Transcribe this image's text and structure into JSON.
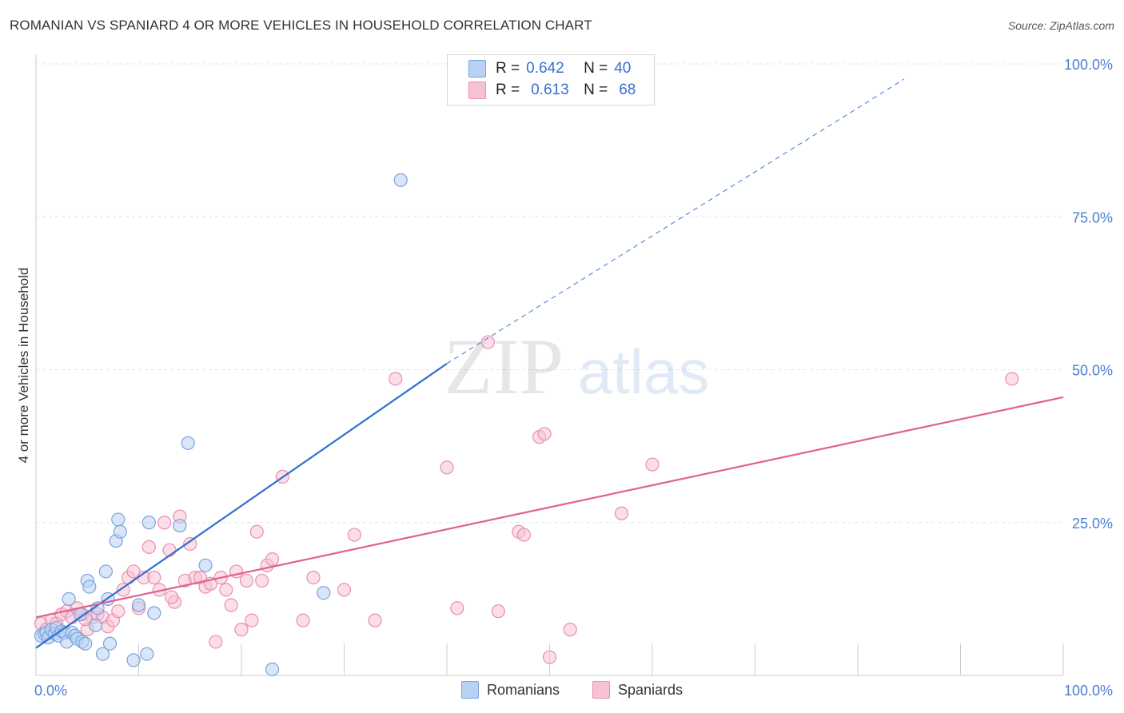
{
  "header": {
    "title": "ROMANIAN VS SPANIARD 4 OR MORE VEHICLES IN HOUSEHOLD CORRELATION CHART",
    "source": "Source: ZipAtlas.com"
  },
  "legend_top": {
    "rows": [
      {
        "r_label": "R =",
        "r_value": "0.642",
        "n_label": "N =",
        "n_value": "40"
      },
      {
        "r_label": "R =",
        "r_value": "0.613",
        "n_label": "N =",
        "n_value": "68"
      }
    ]
  },
  "watermark": {
    "zip": "ZIP",
    "atlas": "atlas"
  },
  "colors": {
    "romanians_fill": "#b9d1f2",
    "romanians_stroke": "#7aa3de",
    "romanians_line": "#2f6fd0",
    "spaniards_fill": "#f7c3d4",
    "spaniards_stroke": "#e88fae",
    "spaniards_line": "#e0628f",
    "tick_text": "#4a7fd4"
  },
  "chart_data": {
    "type": "scatter",
    "title": "ROMANIAN VS SPANIARD 4 OR MORE VEHICLES IN HOUSEHOLD CORRELATION CHART",
    "xlabel": "",
    "ylabel": "4 or more Vehicles in Household",
    "xlim": [
      0,
      100
    ],
    "ylim": [
      0,
      100
    ],
    "x_tick_labels": [
      "0.0%",
      "100.0%"
    ],
    "y_ticks": [
      25,
      50,
      75,
      100
    ],
    "y_tick_labels": [
      "25.0%",
      "50.0%",
      "75.0%",
      "100.0%"
    ],
    "series": [
      {
        "name": "Romanians",
        "R": 0.642,
        "N": 40,
        "trend": {
          "x": [
            0,
            40
          ],
          "y": [
            4.5,
            51
          ],
          "dashed_extension_to": [
            84.5,
            97.5
          ]
        },
        "points": [
          [
            0.5,
            6.5
          ],
          [
            0.8,
            6.8
          ],
          [
            1,
            7
          ],
          [
            1.2,
            6.2
          ],
          [
            1.5,
            7.5
          ],
          [
            1.8,
            6.8
          ],
          [
            2,
            7.8
          ],
          [
            2.2,
            6.5
          ],
          [
            2.5,
            7.2
          ],
          [
            2.8,
            7
          ],
          [
            3,
            5.5
          ],
          [
            3.2,
            12.5
          ],
          [
            3.5,
            7
          ],
          [
            3.8,
            6.5
          ],
          [
            4,
            6
          ],
          [
            4.3,
            10
          ],
          [
            4.5,
            5.5
          ],
          [
            4.8,
            5.2
          ],
          [
            5,
            15.5
          ],
          [
            5.2,
            14.5
          ],
          [
            5.8,
            8.2
          ],
          [
            6,
            11
          ],
          [
            6.5,
            3.5
          ],
          [
            6.8,
            17
          ],
          [
            7,
            12.5
          ],
          [
            7.2,
            5.2
          ],
          [
            7.8,
            22
          ],
          [
            8,
            25.5
          ],
          [
            8.2,
            23.5
          ],
          [
            9.5,
            2.5
          ],
          [
            10,
            11.5
          ],
          [
            10.8,
            3.5
          ],
          [
            11,
            25
          ],
          [
            11.5,
            10.2
          ],
          [
            14,
            24.5
          ],
          [
            14.8,
            38
          ],
          [
            16.5,
            18
          ],
          [
            23,
            1
          ],
          [
            28,
            13.5
          ],
          [
            35.5,
            81
          ]
        ]
      },
      {
        "name": "Spaniards",
        "R": 0.613,
        "N": 68,
        "trend": {
          "x": [
            0,
            100
          ],
          "y": [
            9.5,
            45.5
          ]
        },
        "points": [
          [
            0.5,
            8.5
          ],
          [
            1,
            7.5
          ],
          [
            1.5,
            9
          ],
          [
            2,
            8.5
          ],
          [
            2.5,
            10
          ],
          [
            3,
            10.5
          ],
          [
            3.5,
            9.5
          ],
          [
            4,
            11
          ],
          [
            4.5,
            10
          ],
          [
            5,
            7.5
          ],
          [
            5.5,
            9.5
          ],
          [
            6,
            10
          ],
          [
            6.5,
            9.5
          ],
          [
            7,
            8
          ],
          [
            7.5,
            9
          ],
          [
            8,
            10.5
          ],
          [
            8.5,
            14
          ],
          [
            9,
            16
          ],
          [
            9.5,
            17
          ],
          [
            10,
            11
          ],
          [
            10.5,
            16
          ],
          [
            11,
            21
          ],
          [
            11.5,
            16
          ],
          [
            12,
            14
          ],
          [
            12.5,
            25
          ],
          [
            13,
            20.5
          ],
          [
            13.5,
            12
          ],
          [
            14,
            26
          ],
          [
            14.5,
            15.5
          ],
          [
            15,
            21.5
          ],
          [
            15.5,
            16
          ],
          [
            16,
            16
          ],
          [
            16.5,
            14.5
          ],
          [
            17,
            15
          ],
          [
            17.5,
            5.5
          ],
          [
            18,
            16
          ],
          [
            18.5,
            14
          ],
          [
            19,
            11.5
          ],
          [
            19.5,
            17
          ],
          [
            20,
            7.5
          ],
          [
            20.5,
            15.5
          ],
          [
            21,
            9
          ],
          [
            21.5,
            23.5
          ],
          [
            22,
            15.5
          ],
          [
            22.5,
            18
          ],
          [
            23,
            19
          ],
          [
            24,
            32.5
          ],
          [
            26,
            9
          ],
          [
            27,
            16
          ],
          [
            30,
            14
          ],
          [
            31,
            23
          ],
          [
            33,
            9
          ],
          [
            35,
            48.5
          ],
          [
            40,
            34
          ],
          [
            41,
            11
          ],
          [
            44,
            54.5
          ],
          [
            45,
            10.5
          ],
          [
            47,
            23.5
          ],
          [
            47.5,
            23
          ],
          [
            49,
            39
          ],
          [
            49.5,
            39.5
          ],
          [
            50,
            3
          ],
          [
            52,
            7.5
          ],
          [
            57,
            26.5
          ],
          [
            60,
            34.5
          ],
          [
            95,
            48.5
          ],
          [
            4.8,
            9.2
          ],
          [
            13.2,
            12.8
          ]
        ]
      }
    ]
  },
  "bottom_legend": {
    "items": [
      {
        "label": "Romanians"
      },
      {
        "label": "Spaniards"
      }
    ]
  }
}
